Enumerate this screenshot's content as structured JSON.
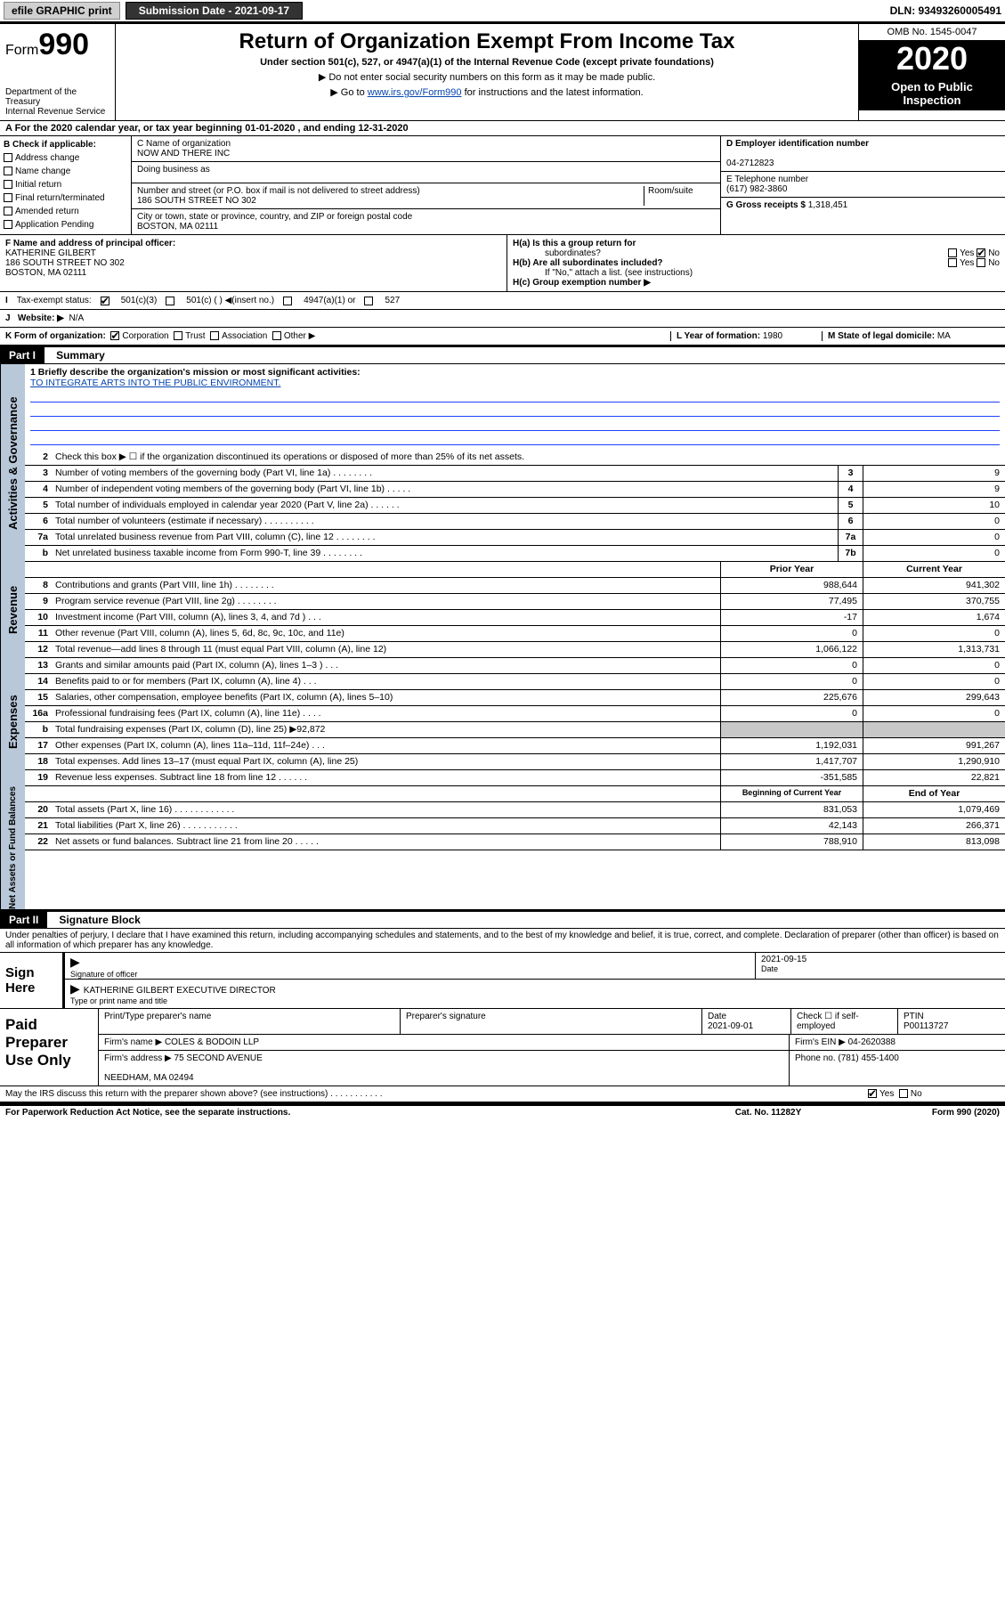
{
  "top": {
    "efile": "efile GRAPHIC print",
    "subdate_lbl": "Submission Date - 2021-09-17",
    "dln": "DLN: 93493260005491"
  },
  "hdr": {
    "form_prefix": "Form",
    "form_num": "990",
    "dept": "Department of the Treasury",
    "irs": "Internal Revenue Service",
    "title": "Return of Organization Exempt From Income Tax",
    "sub": "Under section 501(c), 527, or 4947(a)(1) of the Internal Revenue Code (except private foundations)",
    "instr1": "▶ Do not enter social security numbers on this form as it may be made public.",
    "instr2_pre": "▶ Go to ",
    "instr2_link": "www.irs.gov/Form990",
    "instr2_post": " for instructions and the latest information.",
    "omb": "OMB No. 1545-0047",
    "year": "2020",
    "opi1": "Open to Public",
    "opi2": "Inspection"
  },
  "rowA": "A For the 2020 calendar year, or tax year beginning 01-01-2020    , and ending 12-31-2020",
  "blockB": {
    "lbl": "B Check if applicable:",
    "addr": "Address change",
    "name": "Name change",
    "init": "Initial return",
    "final": "Final return/terminated",
    "amend": "Amended return",
    "app": "Application Pending"
  },
  "blockC": {
    "name_lbl": "C Name of organization",
    "name": "NOW AND THERE INC",
    "dba_lbl": "Doing business as",
    "street_lbl": "Number and street (or P.O. box if mail is not delivered to street address)",
    "room_lbl": "Room/suite",
    "street": "186 SOUTH STREET NO 302",
    "city_lbl": "City or town, state or province, country, and ZIP or foreign postal code",
    "city": "BOSTON, MA  02111"
  },
  "blockD": {
    "lbl": "D Employer identification number",
    "val": "04-2712823"
  },
  "blockE": {
    "lbl": "E Telephone number",
    "val": "(617) 982-3860"
  },
  "blockG": {
    "lbl": "G Gross receipts $ ",
    "val": "1,318,451"
  },
  "blockF": {
    "lbl": "F  Name and address of principal officer:",
    "name": "KATHERINE GILBERT",
    "addr1": "186 SOUTH STREET NO 302",
    "addr2": "BOSTON, MA  02111"
  },
  "blockH": {
    "ha": "H(a)  Is this a group return for",
    "ha2": "subordinates?",
    "hb": "H(b)  Are all subordinates included?",
    "hb2": "If \"No,\" attach a list. (see instructions)",
    "hc": "H(c)  Group exemption number ▶",
    "yes": "Yes",
    "no": "No"
  },
  "taxex": {
    "lbl": "Tax-exempt status:",
    "c3": "501(c)(3)",
    "c": "501(c) (   ) ◀(insert no.)",
    "a1": "4947(a)(1) or",
    "s527": "527"
  },
  "website": {
    "lbl": "Website: ▶",
    "val": "N/A"
  },
  "rowK": {
    "k": "K Form of organization:",
    "corp": "Corporation",
    "trust": "Trust",
    "assoc": "Association",
    "other": "Other ▶",
    "l": "L Year of formation: ",
    "lval": "1980",
    "m": "M State of legal domicile: ",
    "mval": "MA"
  },
  "part1": {
    "hdr": "Part I",
    "title": "Summary"
  },
  "mission": {
    "lbl": "1  Briefly describe the organization's mission or most significant activities:",
    "text": "TO INTEGRATE ARTS INTO THE PUBLIC ENVIRONMENT."
  },
  "sideA": "Activities & Governance",
  "sideR": "Revenue",
  "sideE": "Expenses",
  "sideN": "Net Assets or Fund Balances",
  "lines_gov": [
    {
      "n": "2",
      "d": "Check this box ▶ ☐  if the organization discontinued its operations or disposed of more than 25% of its net assets."
    },
    {
      "n": "3",
      "d": "Number of voting members of the governing body (Part VI, line 1a)   .    .    .    .    .    .    .    .",
      "b": "3",
      "v": "9"
    },
    {
      "n": "4",
      "d": "Number of independent voting members of the governing body (Part VI, line 1b)   .    .    .    .    .",
      "b": "4",
      "v": "9"
    },
    {
      "n": "5",
      "d": "Total number of individuals employed in calendar year 2020 (Part V, line 2a)   .    .    .    .    .    .",
      "b": "5",
      "v": "10"
    },
    {
      "n": "6",
      "d": "Total number of volunteers (estimate if necessary)    .     .     .     .     .     .     .     .     .     .",
      "b": "6",
      "v": "0"
    },
    {
      "n": "7a",
      "d": "Total unrelated business revenue from Part VIII, column (C), line 12   .    .    .    .    .    .    .    .",
      "b": "7a",
      "v": "0"
    },
    {
      "n": "b",
      "d": "Net unrelated business taxable income from Form 990-T, line 39    .    .    .    .    .    .    .    .",
      "b": "7b",
      "v": "0"
    }
  ],
  "colhdrs": {
    "prior": "Prior Year",
    "curr": "Current Year"
  },
  "lines_rev": [
    {
      "n": "8",
      "d": "Contributions and grants (Part VIII, line 1h)   .    .    .    .    .    .    .    .",
      "p": "988,644",
      "c": "941,302"
    },
    {
      "n": "9",
      "d": "Program service revenue (Part VIII, line 2g)   .    .    .    .    .    .    .    .",
      "p": "77,495",
      "c": "370,755"
    },
    {
      "n": "10",
      "d": "Investment income (Part VIII, column (A), lines 3, 4, and 7d )   .    .    .",
      "p": "-17",
      "c": "1,674"
    },
    {
      "n": "11",
      "d": "Other revenue (Part VIII, column (A), lines 5, 6d, 8c, 9c, 10c, and 11e)",
      "p": "0",
      "c": "0"
    },
    {
      "n": "12",
      "d": "Total revenue—add lines 8 through 11 (must equal Part VIII, column (A), line 12)",
      "p": "1,066,122",
      "c": "1,313,731"
    }
  ],
  "lines_exp": [
    {
      "n": "13",
      "d": "Grants and similar amounts paid (Part IX, column (A), lines 1–3 )   .    .    .",
      "p": "0",
      "c": "0"
    },
    {
      "n": "14",
      "d": "Benefits paid to or for members (Part IX, column (A), line 4)   .    .    .",
      "p": "0",
      "c": "0"
    },
    {
      "n": "15",
      "d": "Salaries, other compensation, employee benefits (Part IX, column (A), lines 5–10)",
      "p": "225,676",
      "c": "299,643"
    },
    {
      "n": "16a",
      "d": "Professional fundraising fees (Part IX, column (A), line 11e)   .    .    .    .",
      "p": "0",
      "c": "0"
    },
    {
      "n": "b",
      "d": "Total fundraising expenses (Part IX, column (D), line 25) ▶92,872",
      "p": "",
      "c": "",
      "shade": true
    },
    {
      "n": "17",
      "d": "Other expenses (Part IX, column (A), lines 11a–11d, 11f–24e)   .    .    .",
      "p": "1,192,031",
      "c": "991,267"
    },
    {
      "n": "18",
      "d": "Total expenses. Add lines 13–17 (must equal Part IX, column (A), line 25)",
      "p": "1,417,707",
      "c": "1,290,910"
    },
    {
      "n": "19",
      "d": "Revenue less expenses. Subtract line 18 from line 12   .    .    .    .    .    .",
      "p": "-351,585",
      "c": "22,821"
    }
  ],
  "colhdrs2": {
    "beg": "Beginning of Current Year",
    "end": "End of Year"
  },
  "lines_net": [
    {
      "n": "20",
      "d": "Total assets (Part X, line 16)   .    .    .    .    .    .    .    .    .    .    .    .",
      "p": "831,053",
      "c": "1,079,469"
    },
    {
      "n": "21",
      "d": "Total liabilities (Part X, line 26)   .    .    .    .    .    .    .    .    .    .    .",
      "p": "42,143",
      "c": "266,371"
    },
    {
      "n": "22",
      "d": "Net assets or fund balances. Subtract line 21 from line 20   .    .    .    .    .",
      "p": "788,910",
      "c": "813,098"
    }
  ],
  "part2": {
    "hdr": "Part II",
    "title": "Signature Block"
  },
  "penalty": "Under penalties of perjury, I declare that I have examined this return, including accompanying schedules and statements, and to the best of my knowledge and belief, it is true, correct, and complete. Declaration of preparer (other than officer) is based on all information of which preparer has any knowledge.",
  "sign": {
    "here": "Sign Here",
    "sig_lbl": "Signature of officer",
    "date_lbl": "Date",
    "date": "2021-09-15",
    "name": "KATHERINE GILBERT  EXECUTIVE DIRECTOR",
    "name_lbl": "Type or print name and title"
  },
  "paid": {
    "hdr": "Paid Preparer Use Only",
    "print_lbl": "Print/Type preparer's name",
    "psig_lbl": "Preparer's signature",
    "pdate_lbl": "Date",
    "pdate": "2021-09-01",
    "self_lbl": "Check ☐ if self-employed",
    "ptin_lbl": "PTIN",
    "ptin": "P00113727",
    "firm_lbl": "Firm's name    ▶ ",
    "firm": "COLES & BODOIN LLP",
    "ein_lbl": "Firm's EIN ▶ ",
    "ein": "04-2620388",
    "addr_lbl": "Firm's address ▶ ",
    "addr1": "75 SECOND AVENUE",
    "addr2": "NEEDHAM, MA  02494",
    "phone_lbl": "Phone no. ",
    "phone": "(781) 455-1400",
    "may": "May the IRS discuss this return with the preparer shown above? (see instructions)   .    .    .    .    .    .    .    .    .    .    .",
    "yes": "Yes",
    "no": "No"
  },
  "foot": {
    "pra": "For Paperwork Reduction Act Notice, see the separate instructions.",
    "cat": "Cat. No. 11282Y",
    "form": "Form 990 (2020)"
  }
}
